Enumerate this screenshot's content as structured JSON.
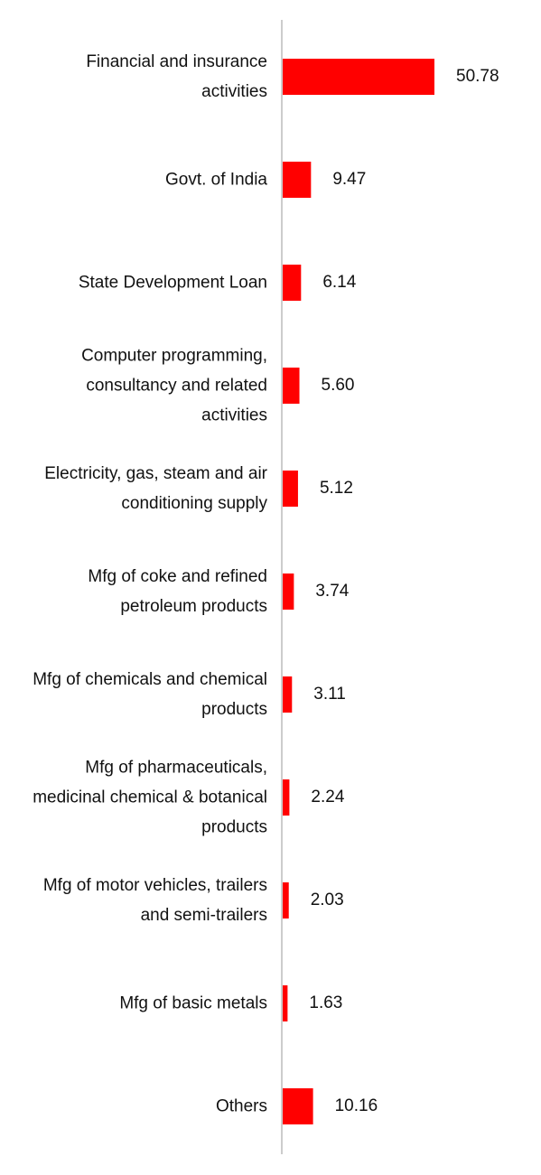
{
  "chart_data": {
    "type": "barh",
    "categories": [
      "Financial and insurance activities",
      "Govt. of India",
      "State Development Loan",
      "Computer programming, consultancy and related activities",
      "Electricity, gas, steam and air conditioning supply",
      "Mfg of coke and refined petroleum products",
      "Mfg of chemicals and chemical products",
      "Mfg of pharmaceuticals, medicinal chemical & botanical products",
      "Mfg of motor vehicles, trailers and semi-trailers",
      "Mfg of basic metals",
      "Others"
    ],
    "values": [
      50.78,
      9.47,
      6.14,
      5.6,
      5.12,
      3.74,
      3.11,
      2.24,
      2.03,
      1.63,
      10.16
    ],
    "value_labels": [
      "50.78",
      "9.47",
      "6.14",
      "5.60",
      "5.12",
      "3.74",
      "3.11",
      "2.24",
      "2.03",
      "1.63",
      "10.16"
    ],
    "color": "#ff0000"
  }
}
